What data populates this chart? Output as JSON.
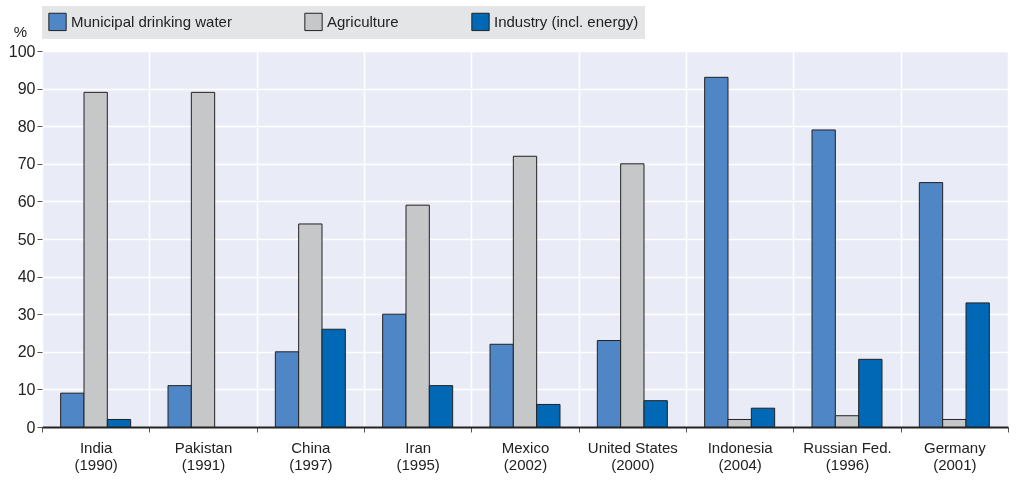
{
  "chart_data": {
    "type": "bar",
    "categories": [
      "India\n(1990)",
      "Pakistan\n(1991)",
      "China\n(1997)",
      "Iran\n(1995)",
      "Mexico\n(2002)",
      "United States\n(2000)",
      "Indonesia\n(2004)",
      "Russian Fed.\n(1996)",
      "Germany\n(2001)"
    ],
    "series": [
      {
        "name": "Municipal drinking water",
        "color": "#4e86c6",
        "values": [
          9,
          11,
          20,
          30,
          22,
          23,
          93,
          79,
          65
        ]
      },
      {
        "name": "Agriculture",
        "color": "#c6c7c9",
        "values": [
          89,
          89,
          54,
          59,
          72,
          70,
          2,
          3,
          2
        ]
      },
      {
        "name": "Industry (incl. energy)",
        "color": "#0068b4",
        "values": [
          2,
          null,
          26,
          11,
          6,
          7,
          5,
          18,
          33
        ]
      }
    ],
    "ylabel": "%",
    "ylim": [
      0,
      100
    ],
    "yticks": [
      0,
      10,
      20,
      30,
      40,
      50,
      60,
      70,
      80,
      90,
      100
    ],
    "grid": true,
    "legend": "top"
  }
}
